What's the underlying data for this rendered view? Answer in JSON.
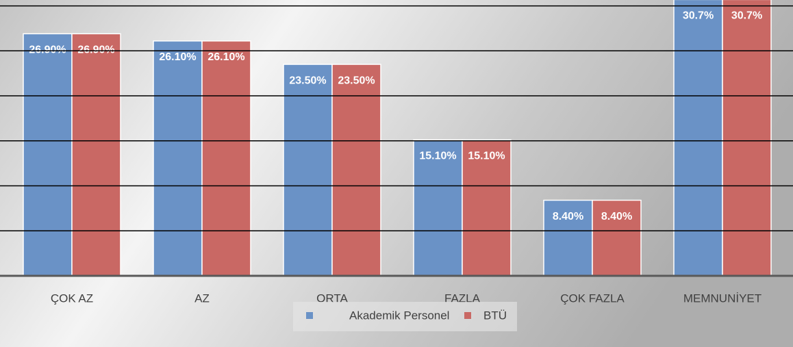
{
  "chart_data": {
    "type": "bar",
    "categories": [
      "ÇOK AZ",
      "AZ",
      "ORTA",
      "FAZLA",
      "ÇOK FAZLA",
      "MEMNUNİYET"
    ],
    "series": [
      {
        "name": "Akademik Personel",
        "color": "#6a92c6",
        "values": [
          26.9,
          26.1,
          23.5,
          15.1,
          8.4,
          30.7
        ],
        "value_labels": [
          "26.90%",
          "26.10%",
          "23.50%",
          "15.10%",
          "8.40%",
          "30.7%"
        ]
      },
      {
        "name": "BTÜ",
        "color": "#c96864",
        "values": [
          26.9,
          26.1,
          23.5,
          15.1,
          8.4,
          30.7
        ],
        "value_labels": [
          "26.90%",
          "26.10%",
          "23.50%",
          "15.10%",
          "8.40%",
          "30.7%"
        ]
      }
    ],
    "ylim": [
      0,
      30.5
    ],
    "yticks": [
      0,
      5,
      10,
      15,
      20,
      25,
      30
    ],
    "grid": true,
    "legend": "bottom"
  }
}
